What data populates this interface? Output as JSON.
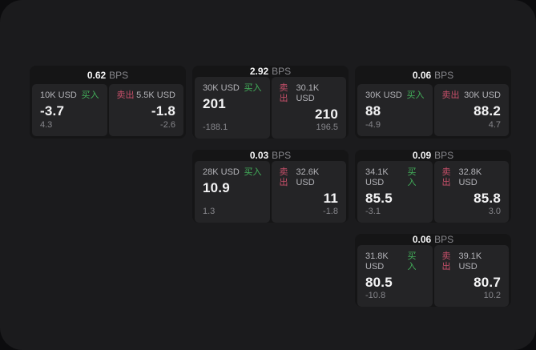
{
  "labels": {
    "bps_unit": "BPS",
    "buy": "买入",
    "sell": "卖出"
  },
  "colors": {
    "panel_bg": "#1b1b1d",
    "card_bg": "#151516",
    "tile_bg": "#242426",
    "buy_green": "#43b15b",
    "sell_red": "#c8506a"
  },
  "cards": [
    {
      "bps": "0.62",
      "buy": {
        "size": "10K USD",
        "value": "-3.7",
        "sub": "4.3"
      },
      "sell": {
        "size": "5.5K USD",
        "value": "-1.8",
        "sub": "-2.6"
      }
    },
    {
      "bps": "2.92",
      "buy": {
        "size": "30K USD",
        "value": "201",
        "sub": "-188.1"
      },
      "sell": {
        "size": "30.1K USD",
        "value": "210",
        "sub": "196.5"
      }
    },
    {
      "bps": "0.06",
      "buy": {
        "size": "30K USD",
        "value": "88",
        "sub": "-4.9"
      },
      "sell": {
        "size": "30K USD",
        "value": "88.2",
        "sub": "4.7"
      }
    },
    {
      "bps": "0.03",
      "buy": {
        "size": "28K USD",
        "value": "10.9",
        "sub": "1.3"
      },
      "sell": {
        "size": "32.6K USD",
        "value": "11",
        "sub": "-1.8"
      }
    },
    {
      "bps": "0.09",
      "buy": {
        "size": "34.1K USD",
        "value": "85.5",
        "sub": "-3.1"
      },
      "sell": {
        "size": "32.8K USD",
        "value": "85.8",
        "sub": "3.0"
      }
    },
    {
      "bps": "0.06",
      "buy": {
        "size": "31.8K USD",
        "value": "80.5",
        "sub": "-10.8"
      },
      "sell": {
        "size": "39.1K USD",
        "value": "80.7",
        "sub": "10.2"
      }
    }
  ]
}
